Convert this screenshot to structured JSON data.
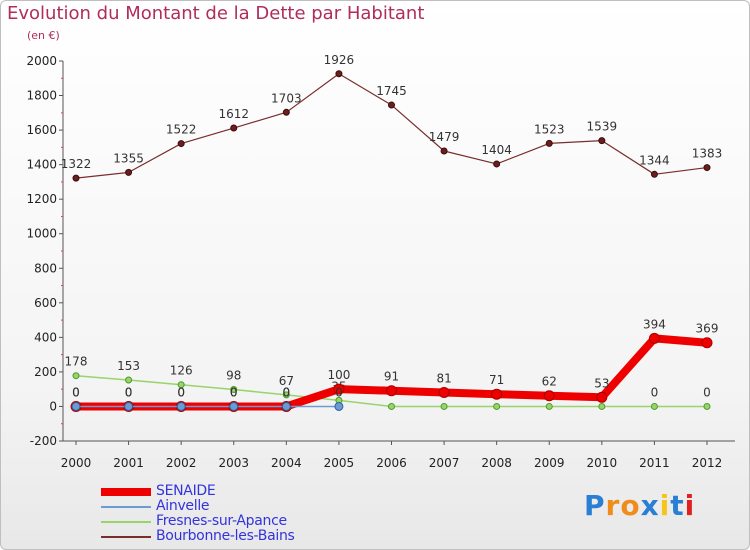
{
  "chart_data": {
    "type": "line",
    "title": "Evolution du Montant de la Dette par Habitant",
    "subtitle": "(en €)",
    "x": [
      "2000",
      "2001",
      "2002",
      "2003",
      "2004",
      "2005",
      "2006",
      "2007",
      "2008",
      "2009",
      "2010",
      "2011",
      "2012"
    ],
    "ylim": [
      -200,
      2000
    ],
    "yticks": [
      -200,
      0,
      200,
      400,
      600,
      800,
      1000,
      1200,
      1400,
      1600,
      1800,
      2000
    ],
    "grid": false,
    "legend_position": "bottom-left",
    "series": [
      {
        "name": "SENAIDE",
        "color": "#ee0000",
        "values": [
          0,
          0,
          0,
          0,
          0,
          100,
          91,
          81,
          71,
          62,
          53,
          394,
          369
        ],
        "labels": [
          "0",
          "0",
          "0",
          "0",
          "0",
          "100",
          "91",
          "81",
          "71",
          "62",
          "53",
          "394",
          "369"
        ]
      },
      {
        "name": "Ainvelle",
        "color": "#6b9bd2",
        "values": [
          0,
          0,
          0,
          0,
          0,
          0,
          null,
          null,
          null,
          null,
          null,
          null,
          null
        ],
        "labels": [
          "0",
          "0",
          "0",
          "0",
          "0",
          "0"
        ]
      },
      {
        "name": "Fresnes-sur-Apance",
        "color": "#99d36b",
        "values": [
          178,
          153,
          126,
          98,
          67,
          35,
          0,
          0,
          0,
          0,
          0,
          0,
          0
        ],
        "labels": [
          "178",
          "153",
          "126",
          "98",
          "67",
          "35",
          "",
          "",
          "",
          "",
          "",
          "0",
          "0"
        ]
      },
      {
        "name": "Bourbonne-les-Bains",
        "color": "#7a2d2d",
        "values": [
          1322,
          1355,
          1522,
          1612,
          1703,
          1926,
          1745,
          1479,
          1404,
          1523,
          1539,
          1344,
          1383
        ],
        "labels": [
          "1322",
          "1355",
          "1522",
          "1612",
          "1703",
          "1926",
          "1745",
          "1479",
          "1404",
          "1523",
          "1539",
          "1344",
          "1383"
        ]
      }
    ]
  },
  "brand": {
    "letters": [
      "P",
      "r",
      "o",
      "x",
      "i",
      "t",
      "i"
    ],
    "colors": [
      "#2a7fd4",
      "#f08c1a",
      "#f08c1a",
      "#2a7fd4",
      "#f5c518",
      "#2a7fd4",
      "#e02020"
    ]
  }
}
